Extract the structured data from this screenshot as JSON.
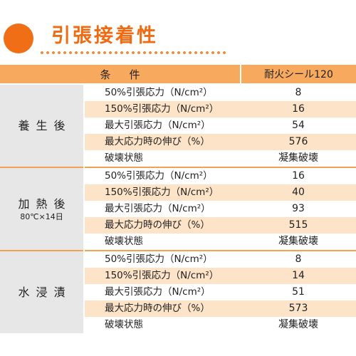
{
  "title": "引張接着性",
  "header": {
    "condition": "条件",
    "product": "耐火シール120"
  },
  "groups": [
    {
      "name": "養生後",
      "sub": "",
      "rows": [
        {
          "item": "50%引張応力（N/cm²）",
          "value": "8"
        },
        {
          "item": "150%引張応力（N/cm²）",
          "value": "16"
        },
        {
          "item": "最大引張応力（N/cm²）",
          "value": "54"
        },
        {
          "item": "最大応力時の伸び（%）",
          "value": "576"
        },
        {
          "item": "破壊状態",
          "value": "凝集破壊"
        }
      ]
    },
    {
      "name": "加熱後",
      "sub": "80℃×14日",
      "rows": [
        {
          "item": "50%引張応力（N/cm²）",
          "value": "16"
        },
        {
          "item": "150%引張応力（N/cm²）",
          "value": "40"
        },
        {
          "item": "最大引張応力（N/cm²）",
          "value": "93"
        },
        {
          "item": "最大応力時の伸び（%）",
          "value": "515"
        },
        {
          "item": "破壊状態",
          "value": "凝集破壊"
        }
      ]
    },
    {
      "name": "水浸漬",
      "sub": "",
      "rows": [
        {
          "item": "50%引張応力（N/cm²）",
          "value": "8"
        },
        {
          "item": "150%引張応力（N/cm²）",
          "value": "14"
        },
        {
          "item": "最大引張応力（N/cm²）",
          "value": "51"
        },
        {
          "item": "最大応力時の伸び（%）",
          "value": "573"
        },
        {
          "item": "破壊状態",
          "value": "凝集破壊"
        }
      ]
    }
  ],
  "colors": {
    "accent": "#f06f16",
    "header_bg": "#f7a95d",
    "row_alt": "#fde3c8",
    "group_bg": "#e7e7e7"
  }
}
